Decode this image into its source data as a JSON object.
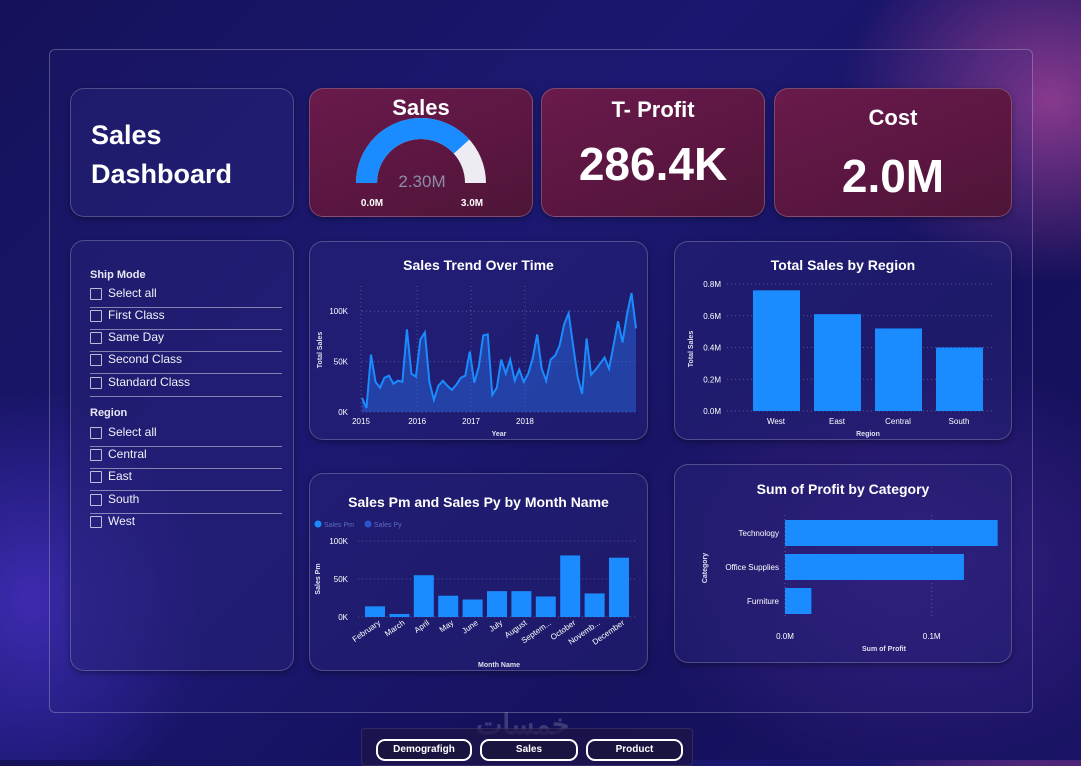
{
  "header": {
    "title_line1": "Sales",
    "title_line2": "Dashboard"
  },
  "kpis": {
    "sales": {
      "label": "Sales",
      "value": "2.30M",
      "min": "0.0M",
      "max": "3.0M",
      "fraction": 0.767
    },
    "profit": {
      "label": "T- Profit",
      "value": "286.4K"
    },
    "cost": {
      "label": "Cost",
      "value": "2.0M"
    }
  },
  "slicers": {
    "ship_mode": {
      "title": "Ship Mode",
      "items": [
        "Select all",
        "First Class",
        "Same Day",
        "Second Class",
        "Standard Class"
      ]
    },
    "region": {
      "title": "Region",
      "items": [
        "Select all",
        "Central",
        "East",
        "South",
        "West"
      ]
    }
  },
  "charts": {
    "trend": {
      "type": "area",
      "title": "Sales Trend Over Time",
      "xlabel": "Year",
      "ylabel": "Total Sales",
      "x_ticks": [
        "2015",
        "2016",
        "2017",
        "2018"
      ],
      "y_ticks": [
        "0K",
        "50K",
        "100K"
      ],
      "ylim": [
        0,
        125000
      ],
      "values": [
        14000,
        4000,
        57000,
        30000,
        24000,
        34000,
        36000,
        28000,
        31000,
        30000,
        82000,
        38000,
        35000,
        72000,
        79000,
        30000,
        12000,
        26000,
        31000,
        26000,
        22000,
        27000,
        34000,
        36000,
        60000,
        29000,
        45000,
        76000,
        77000,
        17000,
        24000,
        52000,
        38000,
        52000,
        31000,
        42000,
        30000,
        38000,
        53000,
        77000,
        43000,
        31000,
        52000,
        56000,
        66000,
        87000,
        98000,
        66000,
        35000,
        18000,
        73000,
        37000,
        42000,
        48000,
        54000,
        43000,
        66000,
        90000,
        69000,
        97000,
        118000,
        83000
      ]
    },
    "region": {
      "type": "bar",
      "title": "Total Sales by Region",
      "xlabel": "Region",
      "ylabel": "Total Sales",
      "categories": [
        "West",
        "East",
        "Central",
        "South"
      ],
      "values": [
        0.76,
        0.61,
        0.52,
        0.4
      ],
      "y_ticks": [
        "0.0M",
        "0.2M",
        "0.4M",
        "0.6M",
        "0.8M"
      ],
      "ylim": [
        0,
        0.8
      ]
    },
    "month": {
      "type": "bar",
      "title": "Sales Pm and Sales Py by Month Name",
      "xlabel": "Month Name",
      "ylabel": "Sales Pm",
      "legend": [
        "Sales Pm",
        "Sales Py"
      ],
      "categories": [
        "February",
        "March",
        "April",
        "May",
        "June",
        "July",
        "August",
        "Septem...",
        "October",
        "Novemb...",
        "December"
      ],
      "values": [
        14000,
        4000,
        55000,
        28000,
        23000,
        34000,
        34000,
        27000,
        81000,
        31000,
        78000
      ],
      "y_ticks": [
        "0K",
        "50K",
        "100K"
      ],
      "ylim": [
        0,
        100000
      ]
    },
    "category": {
      "type": "bar",
      "title": "Sum of Profit by Category",
      "xlabel": "Sum of Profit",
      "ylabel": "Category",
      "categories": [
        "Technology",
        "Office Supplies",
        "Furniture"
      ],
      "values": [
        0.145,
        0.122,
        0.018
      ],
      "x_ticks": [
        "0.0M",
        "0.1M"
      ],
      "xlim": [
        0,
        0.15
      ]
    }
  },
  "nav": {
    "buttons": [
      "Demografigh",
      "Sales",
      "Product"
    ],
    "watermark": "خمسات"
  },
  "colors": {
    "bar": "#1a8cff",
    "kpi_bg": "#5e1844"
  }
}
